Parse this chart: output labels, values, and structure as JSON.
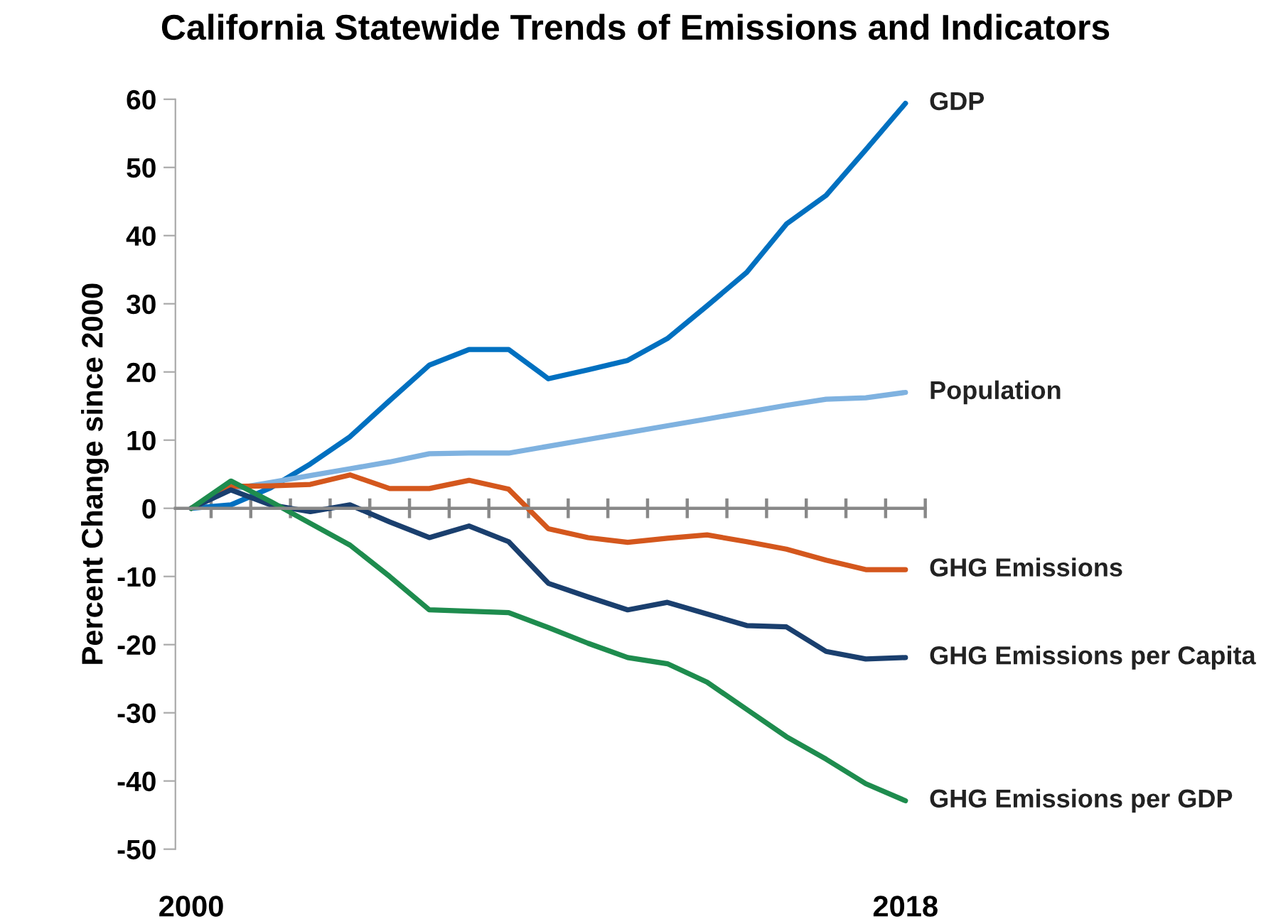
{
  "chart_data": {
    "type": "line",
    "title": "California Statewide Trends of Emissions and Indicators",
    "ylabel": "Percent Change since 2000",
    "x": [
      2000,
      2001,
      2002,
      2003,
      2004,
      2005,
      2006,
      2007,
      2008,
      2009,
      2010,
      2011,
      2012,
      2013,
      2014,
      2015,
      2016,
      2017,
      2018
    ],
    "series": [
      {
        "name": "GDP",
        "color": "#0070c0",
        "values": [
          0,
          0.5,
          3,
          6.5,
          10.5,
          15.8,
          21,
          23.3,
          23.3,
          19,
          20.3,
          21.7,
          24.9,
          29.7,
          34.6,
          41.7,
          45.9,
          52.6,
          59.4
        ]
      },
      {
        "name": "Population",
        "color": "#7fb2e0",
        "values": [
          0,
          2.8,
          3.8,
          4.8,
          5.8,
          6.8,
          8.0,
          8.1,
          8.1,
          9.1,
          10.1,
          11.1,
          12.1,
          13.1,
          14.1,
          15.1,
          16.0,
          16.2,
          17.0
        ]
      },
      {
        "name": "GHG Emissions",
        "color": "#d4571d",
        "values": [
          0,
          3.2,
          3.3,
          3.5,
          4.9,
          2.9,
          2.9,
          4.1,
          2.8,
          -3.0,
          -4.3,
          -5.0,
          -4.4,
          -3.9,
          -4.9,
          -6.0,
          -7.6,
          -9.0,
          -9.0
        ]
      },
      {
        "name": "GHG Emissions per Capita",
        "color": "#1a3f6e",
        "values": [
          0,
          2.7,
          0.5,
          -0.5,
          0.5,
          -2.0,
          -4.3,
          -2.6,
          -4.9,
          -11.0,
          -13.0,
          -14.9,
          -13.8,
          -15.5,
          -17.2,
          -17.4,
          -21.0,
          -22.1,
          -21.9
        ]
      },
      {
        "name": "GHG Emissions per GDP",
        "color": "#1e8c4e",
        "values": [
          0,
          4.0,
          1.0,
          -2.2,
          -5.4,
          -10.0,
          -14.9,
          -15.1,
          -15.3,
          -17.5,
          -19.8,
          -21.9,
          -22.8,
          -25.5,
          -29.5,
          -33.5,
          -36.8,
          -40.4,
          -42.9
        ]
      }
    ],
    "xlim": [
      1999.6,
      2018.5
    ],
    "xticks": [
      2000,
      2018,
      {
        "value": 2000.5,
        "label": null
      },
      {
        "value": 2001.5,
        "label": null
      },
      {
        "value": 2002.5,
        "label": null
      },
      {
        "value": 2003.5,
        "label": null
      },
      {
        "value": 2004.5,
        "label": null
      },
      {
        "value": 2005.5,
        "label": null
      },
      {
        "value": 2006.5,
        "label": null
      },
      {
        "value": 2007.5,
        "label": null
      },
      {
        "value": 2008.5,
        "label": null
      },
      {
        "value": 2009.5,
        "label": null
      },
      {
        "value": 2010.5,
        "label": null
      },
      {
        "value": 2011.5,
        "label": null
      },
      {
        "value": 2012.5,
        "label": null
      },
      {
        "value": 2013.5,
        "label": null
      },
      {
        "value": 2014.5,
        "label": null
      },
      {
        "value": 2015.5,
        "label": null
      },
      {
        "value": 2016.5,
        "label": null
      },
      {
        "value": 2017.5,
        "label": null
      },
      {
        "value": 2018.5,
        "label": null
      }
    ],
    "ylim": [
      -50,
      60
    ],
    "yticks": [
      -50,
      -40,
      -30,
      -20,
      -10,
      0,
      10,
      20,
      30,
      40,
      50,
      60
    ],
    "legend": false,
    "marker": "none",
    "line_style": "solid"
  }
}
